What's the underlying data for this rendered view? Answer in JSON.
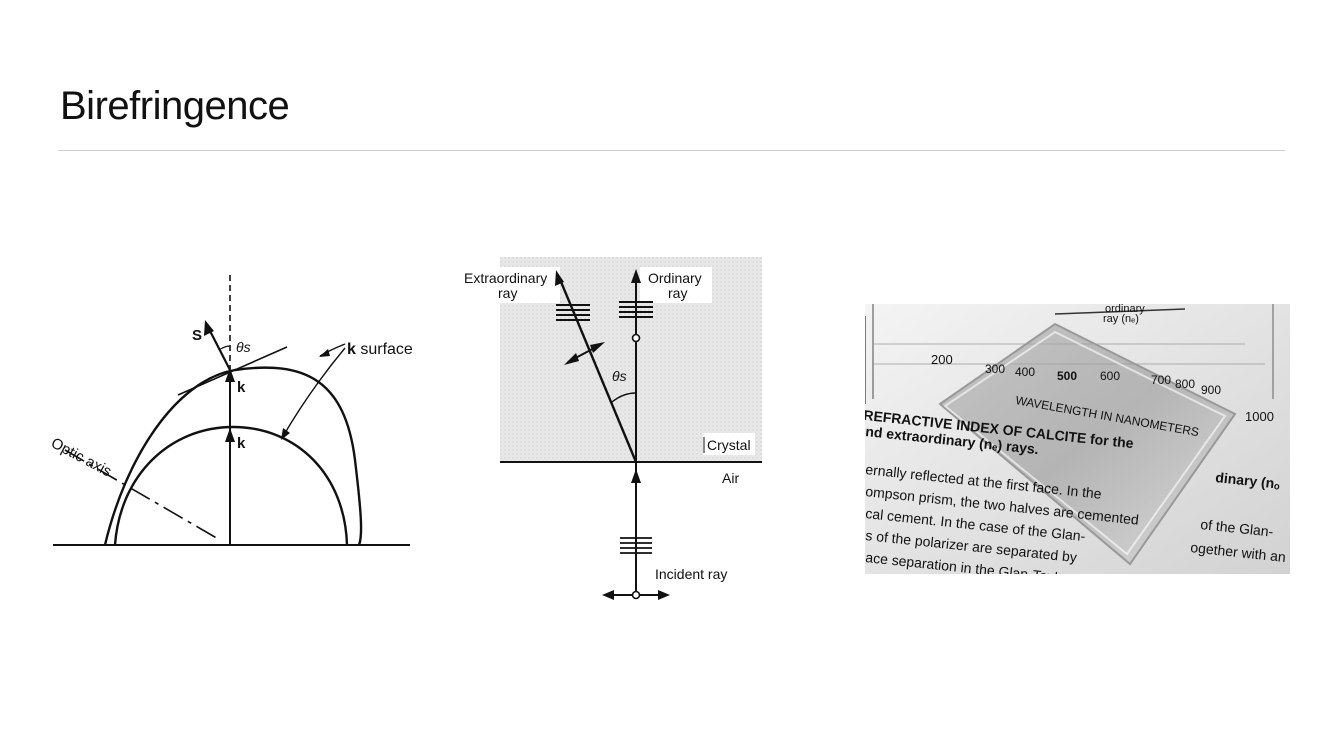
{
  "slide": {
    "title": "Birefringence"
  },
  "figure1": {
    "label_S": "S",
    "label_theta": "θs",
    "label_k_surface_bold": "k",
    "label_k_surface_rest": " surface",
    "label_k_outer": "k",
    "label_k_inner": "k",
    "label_optic_axis": "Optic axis"
  },
  "figure2": {
    "label_extraordinary_1": "Extraordinary",
    "label_extraordinary_2": "ray",
    "label_ordinary_1": "Ordinary",
    "label_ordinary_2": "ray",
    "label_theta": "θs",
    "label_crystal": "Crystal",
    "label_air": "Air",
    "label_incident": "Incident ray"
  },
  "figure3": {
    "axis_200": "200",
    "axis_1000": "1000",
    "ray_label_1": "ordinary",
    "ray_label_2": "ray (nₑ)",
    "ticks": [
      "300",
      "400",
      "500",
      "600",
      "700",
      "800",
      "900"
    ],
    "wavelength_label": "WAVELENGTH IN NANOMETERS",
    "text_lines": [
      "REFRACTIVE INDEX OF CALCITE for the",
      "nd extraordinary (nₑ) rays.",
      "ernally reflected at the first face. In the",
      "ompson prism, the two halves are cemented",
      "cal cement. In the case of the Glan-",
      "s of the polarizer are separated by",
      "ace separation in the Glan-Taylor prism"
    ],
    "right_bold": "dinary (nₒ",
    "right_line_2": "of the Glan-",
    "right_line_3": "ogether with an"
  }
}
